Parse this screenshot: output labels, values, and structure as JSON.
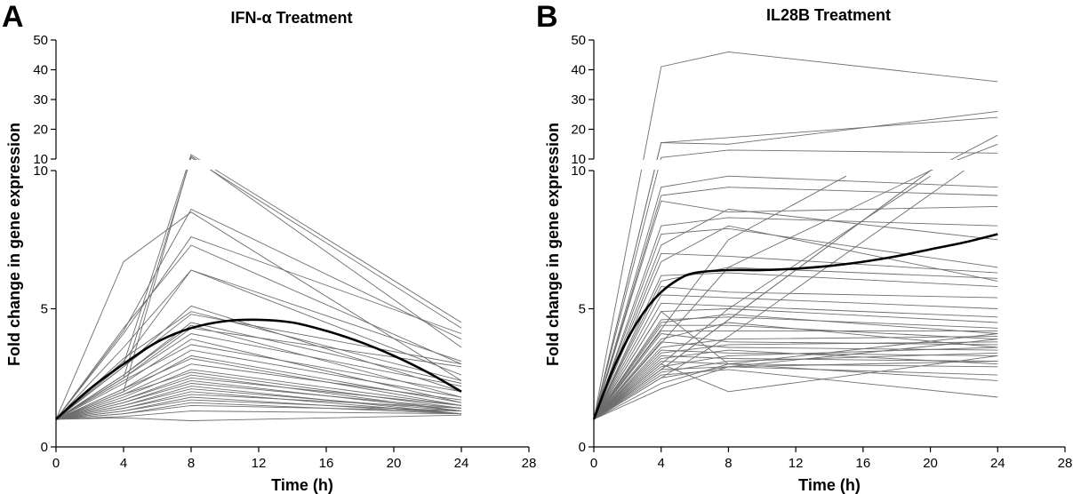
{
  "chart_data": [
    {
      "type": "line",
      "panel_letter": "A",
      "title": "IFN-α Treatment",
      "xlabel": "Time (h)",
      "ylabel": "Fold change in gene expression",
      "xlim": [
        0,
        28
      ],
      "x_ticks": [
        0,
        4,
        8,
        12,
        16,
        20,
        24,
        28
      ],
      "ylim_lower": [
        0,
        10
      ],
      "ylim_upper": [
        10,
        50
      ],
      "y_ticks_lower": [
        0,
        5,
        10
      ],
      "y_ticks_upper": [
        10,
        20,
        30,
        40,
        50
      ],
      "broken_y_axis": true,
      "grid": false,
      "x": [
        0,
        4,
        8,
        24
      ],
      "gene_series": [
        [
          1,
          6.7,
          8.5,
          2.4
        ],
        [
          1,
          4.2,
          8.6,
          3.9
        ],
        [
          1,
          4.1,
          7.6,
          4.1
        ],
        [
          1,
          4.3,
          7.3,
          3.0
        ],
        [
          1,
          3.1,
          6.4,
          2.6
        ],
        [
          1,
          3.6,
          6.4,
          3.1
        ],
        [
          1,
          2.9,
          5.1,
          2.0
        ],
        [
          1,
          3.2,
          4.9,
          2.4
        ],
        [
          1,
          2.9,
          4.8,
          3.0
        ],
        [
          1,
          2.6,
          4.5,
          2.3
        ],
        [
          1,
          2.6,
          4.4,
          1.8
        ],
        [
          1,
          2.5,
          4.3,
          2.9
        ],
        [
          1,
          2.5,
          4.1,
          2.2
        ],
        [
          1,
          2.3,
          3.9,
          1.6
        ],
        [
          1,
          2.4,
          3.7,
          2.0
        ],
        [
          1,
          2.1,
          3.5,
          1.8
        ],
        [
          1,
          2.0,
          3.3,
          1.6
        ],
        [
          1,
          2.1,
          3.2,
          1.5
        ],
        [
          1,
          1.9,
          3.0,
          1.7
        ],
        [
          1,
          1.8,
          2.8,
          1.5
        ],
        [
          1,
          1.9,
          2.7,
          1.4
        ],
        [
          1,
          1.7,
          2.6,
          1.3
        ],
        [
          1,
          1.7,
          2.5,
          1.5
        ],
        [
          1,
          1.6,
          2.4,
          1.3
        ],
        [
          1,
          1.6,
          2.3,
          1.4
        ],
        [
          1,
          1.5,
          2.2,
          1.2
        ],
        [
          1,
          1.5,
          2.1,
          1.3
        ],
        [
          1,
          1.4,
          2.0,
          1.2
        ],
        [
          1,
          1.4,
          1.9,
          1.4
        ],
        [
          1,
          1.3,
          1.8,
          1.2
        ],
        [
          1,
          1.3,
          1.7,
          1.3
        ],
        [
          1,
          1.2,
          1.6,
          1.2
        ],
        [
          1,
          1.2,
          1.5,
          1.3
        ],
        [
          1,
          1.1,
          1.3,
          1.2
        ],
        [
          1,
          1.05,
          0.95,
          1.15
        ]
      ],
      "gene_series_upper": [
        [
          [
            4,
            3.0
          ],
          [
            8,
            11.5
          ],
          [
            24,
            4.5
          ]
        ],
        [
          [
            4,
            2.0
          ],
          [
            8,
            11.0
          ],
          [
            24,
            3.6
          ]
        ],
        [
          [
            4,
            2.5
          ],
          [
            8,
            10.5
          ],
          [
            24,
            4.3
          ]
        ]
      ],
      "mean": {
        "x": [
          0,
          2,
          4,
          6,
          8,
          10,
          12,
          14,
          16,
          18,
          20,
          22,
          24
        ],
        "y": [
          1,
          2.1,
          3.0,
          3.8,
          4.3,
          4.55,
          4.6,
          4.5,
          4.2,
          3.8,
          3.3,
          2.7,
          2.0
        ]
      }
    },
    {
      "type": "line",
      "panel_letter": "B",
      "title": "IL28B Treatment",
      "xlabel": "Time (h)",
      "ylabel": "Fold change in gene expression",
      "xlim": [
        0,
        28
      ],
      "x_ticks": [
        0,
        4,
        8,
        12,
        16,
        20,
        24,
        28
      ],
      "ylim_lower": [
        0,
        10
      ],
      "ylim_upper": [
        10,
        50
      ],
      "y_ticks_lower": [
        0,
        5,
        10
      ],
      "y_ticks_upper": [
        10,
        20,
        30,
        40,
        50
      ],
      "broken_y_axis": true,
      "grid": false,
      "x": [
        0,
        4,
        8,
        24
      ],
      "gene_series": [
        [
          1,
          9.4,
          9.8,
          9.4
        ],
        [
          1,
          9.1,
          9.4,
          9.1
        ],
        [
          1,
          8.9,
          8.5,
          8.7
        ],
        [
          1,
          8.0,
          8.3,
          8.0
        ],
        [
          1,
          7.7,
          7.9,
          6.5
        ],
        [
          1,
          7.3,
          8.6,
          7.5
        ],
        [
          1,
          7.0,
          6.9,
          6.3
        ],
        [
          1,
          6.7,
          8.0,
          6.0
        ],
        [
          1,
          6.2,
          6.3,
          5.8
        ],
        [
          1,
          6.0,
          6.5,
          6.1
        ],
        [
          1,
          5.8,
          5.6,
          5.4
        ],
        [
          1,
          5.5,
          5.4,
          5.0
        ],
        [
          1,
          5.2,
          5.1,
          4.7
        ],
        [
          1,
          4.9,
          5.0,
          4.5
        ],
        [
          1,
          4.9,
          3.0,
          2.4
        ],
        [
          1,
          4.6,
          4.7,
          4.3
        ],
        [
          1,
          4.5,
          4.8,
          4.1
        ],
        [
          1,
          4.4,
          4.4,
          3.9
        ],
        [
          1,
          4.2,
          4.2,
          4.2
        ],
        [
          1,
          4.1,
          3.8,
          3.7
        ],
        [
          1,
          3.9,
          4.5,
          3.6
        ],
        [
          1,
          3.8,
          3.6,
          3.5
        ],
        [
          1,
          3.6,
          3.9,
          4.0
        ],
        [
          1,
          3.5,
          3.4,
          3.3
        ],
        [
          1,
          3.4,
          3.7,
          3.8
        ],
        [
          1,
          3.3,
          3.2,
          3.1
        ],
        [
          1,
          3.2,
          3.5,
          3.0
        ],
        [
          1,
          3.1,
          3.0,
          2.9
        ],
        [
          1,
          3.0,
          2.0,
          3.3
        ],
        [
          1,
          2.9,
          3.3,
          3.6
        ],
        [
          1,
          2.8,
          2.9,
          2.6
        ],
        [
          1,
          2.7,
          3.1,
          3.4
        ],
        [
          1,
          2.6,
          2.8,
          1.8
        ],
        [
          1,
          2.5,
          2.9,
          3.9
        ],
        [
          1,
          2.3,
          3.0,
          4.1
        ],
        [
          1,
          2.1,
          2.9,
          3.1
        ]
      ],
      "gene_series_upper": [
        [
          [
            4,
            41
          ],
          [
            8,
            46
          ],
          [
            24,
            36
          ]
        ],
        [
          [
            4,
            15.5
          ],
          [
            8,
            15
          ],
          [
            24,
            26
          ]
        ],
        [
          [
            4,
            15.5
          ],
          [
            24,
            24
          ]
        ],
        [
          [
            4,
            10.5
          ],
          [
            8,
            13
          ],
          [
            24,
            12
          ]
        ],
        [
          [
            8,
            7.5
          ],
          [
            15,
            9.8
          ]
        ],
        [
          [
            8,
            6.5
          ],
          [
            20,
            10
          ]
        ],
        [
          [
            8,
            5.0
          ],
          [
            20,
            9.8
          ]
        ],
        [
          [
            8,
            4.0
          ],
          [
            22,
            10
          ]
        ],
        [
          [
            20,
            10
          ],
          [
            24,
            18
          ]
        ],
        [
          [
            20,
            10
          ],
          [
            24,
            15
          ]
        ]
      ],
      "mean": {
        "x": [
          0,
          1,
          2,
          3,
          4,
          5,
          6,
          8,
          10,
          12,
          14,
          16,
          18,
          20,
          22,
          24
        ],
        "y": [
          1,
          2.6,
          3.9,
          4.9,
          5.6,
          6.05,
          6.3,
          6.4,
          6.4,
          6.45,
          6.55,
          6.7,
          6.9,
          7.15,
          7.4,
          7.7
        ]
      }
    }
  ]
}
